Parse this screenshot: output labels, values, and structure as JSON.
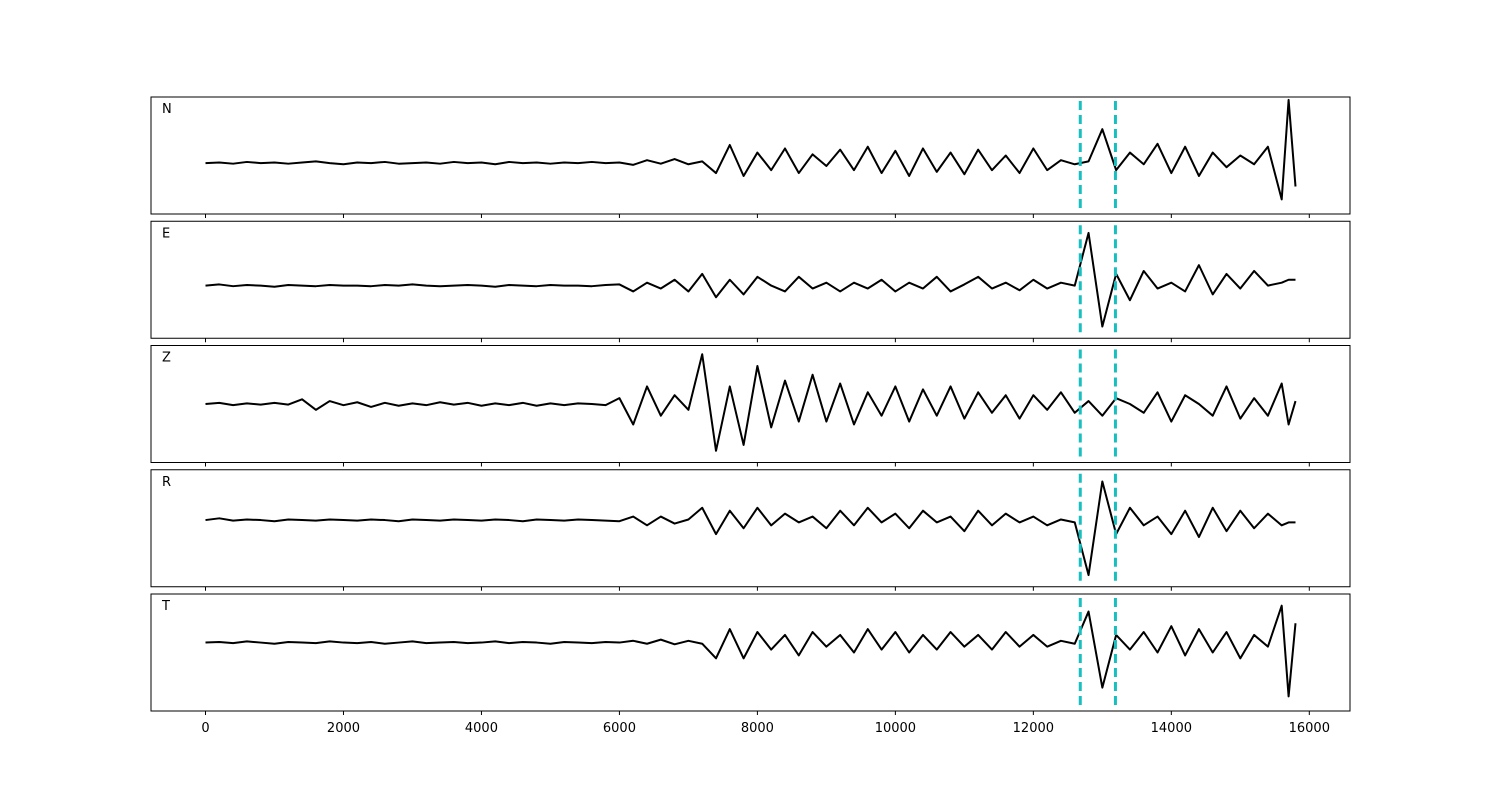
{
  "chart_data": [
    {
      "type": "line",
      "label": "N",
      "color": "#000000",
      "vline_color": "#17bfbf",
      "vlines": [
        12680,
        13190
      ],
      "xlim": [
        -790,
        16590
      ],
      "ylim": [
        -1,
        1
      ],
      "xticks": [
        0,
        2000,
        4000,
        6000,
        8000,
        10000,
        12000,
        14000,
        16000
      ],
      "x": [
        0,
        200,
        400,
        600,
        800,
        1000,
        1200,
        1400,
        1600,
        1800,
        2000,
        2200,
        2400,
        2600,
        2800,
        3000,
        3200,
        3400,
        3600,
        3800,
        4000,
        4200,
        4400,
        4600,
        4800,
        5000,
        5200,
        5400,
        5600,
        5800,
        6000,
        6200,
        6400,
        6600,
        6800,
        7000,
        7200,
        7400,
        7600,
        7800,
        8000,
        8200,
        8400,
        8600,
        8800,
        9000,
        9200,
        9400,
        9600,
        9800,
        10000,
        10200,
        10400,
        10600,
        10800,
        11000,
        11200,
        11400,
        11600,
        11800,
        12000,
        12200,
        12400,
        12600,
        12800,
        13000,
        13200,
        13400,
        13600,
        13800,
        14000,
        14200,
        14400,
        14600,
        14800,
        15000,
        15200,
        15400,
        15600,
        15700,
        15800
      ],
      "values": [
        -0.13,
        -0.12,
        -0.14,
        -0.11,
        -0.13,
        -0.12,
        -0.14,
        -0.12,
        -0.1,
        -0.13,
        -0.15,
        -0.12,
        -0.13,
        -0.11,
        -0.14,
        -0.13,
        -0.12,
        -0.14,
        -0.11,
        -0.13,
        -0.12,
        -0.15,
        -0.11,
        -0.13,
        -0.12,
        -0.14,
        -0.12,
        -0.13,
        -0.11,
        -0.13,
        -0.12,
        -0.16,
        -0.08,
        -0.14,
        -0.06,
        -0.15,
        -0.1,
        -0.3,
        0.18,
        -0.35,
        0.05,
        -0.25,
        0.12,
        -0.3,
        0.02,
        -0.18,
        0.1,
        -0.25,
        0.15,
        -0.3,
        0.08,
        -0.35,
        0.12,
        -0.28,
        0.05,
        -0.32,
        0.1,
        -0.25,
        0.0,
        -0.3,
        0.12,
        -0.25,
        -0.08,
        -0.15,
        -0.1,
        0.45,
        -0.25,
        0.05,
        -0.15,
        0.2,
        -0.3,
        0.15,
        -0.35,
        0.05,
        -0.2,
        0.0,
        -0.15,
        0.15,
        -0.75,
        0.95,
        -0.53
      ]
    },
    {
      "type": "line",
      "label": "E",
      "color": "#000000",
      "vline_color": "#17bfbf",
      "vlines": [
        12680,
        13190
      ],
      "xlim": [
        -790,
        16590
      ],
      "ylim": [
        -1,
        1
      ],
      "xticks": [
        0,
        2000,
        4000,
        6000,
        8000,
        10000,
        12000,
        14000,
        16000
      ],
      "x": [
        0,
        200,
        400,
        600,
        800,
        1000,
        1200,
        1400,
        1600,
        1800,
        2000,
        2200,
        2400,
        2600,
        2800,
        3000,
        3200,
        3400,
        3600,
        3800,
        4000,
        4200,
        4400,
        4600,
        4800,
        5000,
        5200,
        5400,
        5600,
        5800,
        6000,
        6200,
        6400,
        6600,
        6800,
        7000,
        7200,
        7400,
        7600,
        7800,
        8000,
        8200,
        8400,
        8600,
        8800,
        9000,
        9200,
        9400,
        9600,
        9800,
        10000,
        10200,
        10400,
        10600,
        10800,
        11000,
        11200,
        11400,
        11600,
        11800,
        12000,
        12200,
        12400,
        12600,
        12800,
        13000,
        13200,
        13400,
        13600,
        13800,
        14000,
        14200,
        14400,
        14600,
        14800,
        15000,
        15200,
        15400,
        15600,
        15700,
        15800
      ],
      "values": [
        -0.1,
        -0.08,
        -0.11,
        -0.09,
        -0.1,
        -0.12,
        -0.09,
        -0.1,
        -0.11,
        -0.09,
        -0.1,
        -0.1,
        -0.11,
        -0.09,
        -0.1,
        -0.08,
        -0.1,
        -0.11,
        -0.1,
        -0.09,
        -0.1,
        -0.12,
        -0.09,
        -0.1,
        -0.11,
        -0.09,
        -0.1,
        -0.1,
        -0.11,
        -0.09,
        -0.08,
        -0.2,
        -0.05,
        -0.15,
        0.0,
        -0.2,
        0.1,
        -0.3,
        0.0,
        -0.25,
        0.05,
        -0.1,
        -0.2,
        0.05,
        -0.15,
        -0.05,
        -0.2,
        -0.05,
        -0.15,
        0.0,
        -0.2,
        -0.05,
        -0.15,
        0.05,
        -0.2,
        -0.08,
        0.05,
        -0.15,
        -0.05,
        -0.18,
        0.0,
        -0.15,
        -0.05,
        -0.1,
        0.8,
        -0.8,
        0.1,
        -0.35,
        0.15,
        -0.15,
        -0.05,
        -0.2,
        0.25,
        -0.25,
        0.1,
        -0.15,
        0.15,
        -0.1,
        -0.05,
        0.0,
        0.0
      ]
    },
    {
      "type": "line",
      "label": "Z",
      "color": "#000000",
      "vline_color": "#17bfbf",
      "vlines": [
        12680,
        13190
      ],
      "xlim": [
        -790,
        16590
      ],
      "ylim": [
        -1,
        1
      ],
      "xticks": [
        0,
        2000,
        4000,
        6000,
        8000,
        10000,
        12000,
        14000,
        16000
      ],
      "x": [
        0,
        200,
        400,
        600,
        800,
        1000,
        1200,
        1400,
        1600,
        1800,
        2000,
        2200,
        2400,
        2600,
        2800,
        3000,
        3200,
        3400,
        3600,
        3800,
        4000,
        4200,
        4400,
        4600,
        4800,
        5000,
        5200,
        5400,
        5600,
        5800,
        6000,
        6200,
        6400,
        6600,
        6800,
        7000,
        7200,
        7400,
        7600,
        7800,
        8000,
        8200,
        8400,
        8600,
        8800,
        9000,
        9200,
        9400,
        9600,
        9800,
        10000,
        10200,
        10400,
        10600,
        10800,
        11000,
        11200,
        11400,
        11600,
        11800,
        12000,
        12200,
        12400,
        12600,
        12800,
        13000,
        13200,
        13400,
        13600,
        13800,
        14000,
        14200,
        14400,
        14600,
        14800,
        15000,
        15200,
        15400,
        15600,
        15700,
        15800
      ],
      "values": [
        0.0,
        0.02,
        -0.02,
        0.01,
        -0.01,
        0.02,
        -0.01,
        0.08,
        -0.1,
        0.05,
        -0.02,
        0.03,
        -0.05,
        0.02,
        -0.03,
        0.01,
        -0.02,
        0.03,
        -0.01,
        0.02,
        -0.03,
        0.01,
        -0.02,
        0.02,
        -0.03,
        0.01,
        -0.02,
        0.01,
        0.0,
        -0.02,
        0.1,
        -0.35,
        0.3,
        -0.2,
        0.15,
        -0.1,
        0.85,
        -0.8,
        0.3,
        -0.7,
        0.65,
        -0.4,
        0.4,
        -0.3,
        0.5,
        -0.3,
        0.35,
        -0.35,
        0.2,
        -0.2,
        0.3,
        -0.3,
        0.25,
        -0.2,
        0.3,
        -0.25,
        0.2,
        -0.15,
        0.15,
        -0.25,
        0.15,
        -0.1,
        0.2,
        -0.15,
        0.05,
        -0.2,
        0.1,
        0.0,
        -0.15,
        0.2,
        -0.3,
        0.15,
        0.0,
        -0.2,
        0.3,
        -0.25,
        0.1,
        -0.2,
        0.35,
        -0.35,
        0.05
      ]
    },
    {
      "type": "line",
      "label": "R",
      "color": "#000000",
      "vline_color": "#17bfbf",
      "vlines": [
        12680,
        13190
      ],
      "xlim": [
        -790,
        16590
      ],
      "ylim": [
        -1,
        1
      ],
      "xticks": [
        0,
        2000,
        4000,
        6000,
        8000,
        10000,
        12000,
        14000,
        16000
      ],
      "x": [
        0,
        200,
        400,
        600,
        800,
        1000,
        1200,
        1400,
        1600,
        1800,
        2000,
        2200,
        2400,
        2600,
        2800,
        3000,
        3200,
        3400,
        3600,
        3800,
        4000,
        4200,
        4400,
        4600,
        4800,
        5000,
        5200,
        5400,
        5600,
        5800,
        6000,
        6200,
        6400,
        6600,
        6800,
        7000,
        7200,
        7400,
        7600,
        7800,
        8000,
        8200,
        8400,
        8600,
        8800,
        9000,
        9200,
        9400,
        9600,
        9800,
        10000,
        10200,
        10400,
        10600,
        10800,
        11000,
        11200,
        11400,
        11600,
        11800,
        12000,
        12200,
        12400,
        12600,
        12800,
        13000,
        13200,
        13400,
        13600,
        13800,
        14000,
        14200,
        14400,
        14600,
        14800,
        15000,
        15200,
        15400,
        15600,
        15700,
        15800
      ],
      "values": [
        0.14,
        0.17,
        0.13,
        0.15,
        0.14,
        0.12,
        0.15,
        0.14,
        0.13,
        0.15,
        0.14,
        0.13,
        0.15,
        0.14,
        0.12,
        0.15,
        0.14,
        0.13,
        0.15,
        0.14,
        0.13,
        0.15,
        0.14,
        0.12,
        0.15,
        0.14,
        0.13,
        0.15,
        0.14,
        0.13,
        0.12,
        0.2,
        0.05,
        0.2,
        0.08,
        0.15,
        0.35,
        -0.1,
        0.3,
        0.0,
        0.35,
        0.05,
        0.25,
        0.1,
        0.2,
        0.0,
        0.3,
        0.05,
        0.35,
        0.1,
        0.25,
        0.0,
        0.3,
        0.1,
        0.2,
        -0.05,
        0.3,
        0.05,
        0.25,
        0.1,
        0.2,
        0.05,
        0.15,
        0.1,
        -0.8,
        0.8,
        -0.1,
        0.35,
        0.05,
        0.2,
        -0.1,
        0.3,
        -0.15,
        0.35,
        -0.05,
        0.3,
        0.0,
        0.25,
        0.05,
        0.1,
        0.1
      ]
    },
    {
      "type": "line",
      "label": "T",
      "color": "#000000",
      "vline_color": "#17bfbf",
      "vlines": [
        12680,
        13190
      ],
      "xlim": [
        -790,
        16590
      ],
      "ylim": [
        -1,
        1
      ],
      "xticks": [
        0,
        2000,
        4000,
        6000,
        8000,
        10000,
        12000,
        14000,
        16000
      ],
      "x": [
        0,
        200,
        400,
        600,
        800,
        1000,
        1200,
        1400,
        1600,
        1800,
        2000,
        2200,
        2400,
        2600,
        2800,
        3000,
        3200,
        3400,
        3600,
        3800,
        4000,
        4200,
        4400,
        4600,
        4800,
        5000,
        5200,
        5400,
        5600,
        5800,
        6000,
        6200,
        6400,
        6600,
        6800,
        7000,
        7200,
        7400,
        7600,
        7800,
        8000,
        8200,
        8400,
        8600,
        8800,
        9000,
        9200,
        9400,
        9600,
        9800,
        10000,
        10200,
        10400,
        10600,
        10800,
        11000,
        11200,
        11400,
        11600,
        11800,
        12000,
        12200,
        12400,
        12600,
        12800,
        13000,
        13200,
        13400,
        13600,
        13800,
        14000,
        14200,
        14400,
        14600,
        14800,
        15000,
        15200,
        15400,
        15600,
        15700,
        15800
      ],
      "values": [
        0.17,
        0.18,
        0.16,
        0.19,
        0.17,
        0.15,
        0.18,
        0.17,
        0.16,
        0.19,
        0.17,
        0.16,
        0.18,
        0.15,
        0.17,
        0.19,
        0.16,
        0.17,
        0.18,
        0.16,
        0.17,
        0.19,
        0.16,
        0.18,
        0.17,
        0.15,
        0.18,
        0.17,
        0.16,
        0.18,
        0.17,
        0.2,
        0.15,
        0.22,
        0.14,
        0.2,
        0.15,
        -0.1,
        0.4,
        -0.1,
        0.35,
        0.05,
        0.3,
        -0.05,
        0.35,
        0.1,
        0.3,
        0.0,
        0.4,
        0.05,
        0.35,
        0.0,
        0.3,
        0.05,
        0.35,
        0.1,
        0.3,
        0.05,
        0.35,
        0.1,
        0.3,
        0.1,
        0.2,
        0.15,
        0.7,
        -0.6,
        0.3,
        0.05,
        0.35,
        0.0,
        0.45,
        -0.05,
        0.4,
        0.0,
        0.35,
        -0.1,
        0.3,
        0.1,
        0.8,
        -0.75,
        0.5
      ]
    }
  ]
}
